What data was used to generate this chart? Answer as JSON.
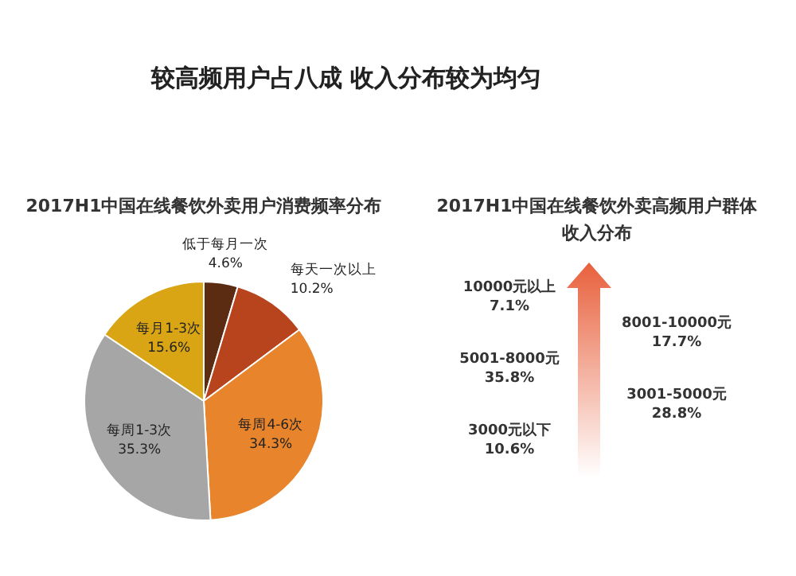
{
  "chart_data": [
    {
      "type": "pie",
      "title": "2017H1中国在线餐饮外卖用户消费频率分布",
      "annotations": [
        "较高频用户占八成 收入分布较为均匀"
      ],
      "categories": [
        "低于每月一次",
        "每天一次以上",
        "每周4-6次",
        "每周1-3次",
        "每月1-3次"
      ],
      "values": [
        4.6,
        10.2,
        34.3,
        35.3,
        15.6
      ],
      "value_labels": [
        "4.6%",
        "10.2%",
        "34.3%",
        "35.3%",
        "15.6%"
      ],
      "colors": [
        "#5b2c12",
        "#b8441e",
        "#e8842c",
        "#a6a6a6",
        "#d9a514"
      ]
    },
    {
      "type": "other",
      "title": "2017H1中国在线餐饮外卖高频用户群体收入分布",
      "categories": [
        "3000元以下",
        "3001-5000元",
        "5001-8000元",
        "8001-10000元",
        "10000元以上"
      ],
      "values": [
        10.6,
        28.8,
        35.8,
        17.7,
        7.1
      ],
      "value_labels": [
        "10.6%",
        "28.8%",
        "35.8%",
        "17.7%",
        "7.1%"
      ],
      "color": "#e8603c"
    }
  ]
}
